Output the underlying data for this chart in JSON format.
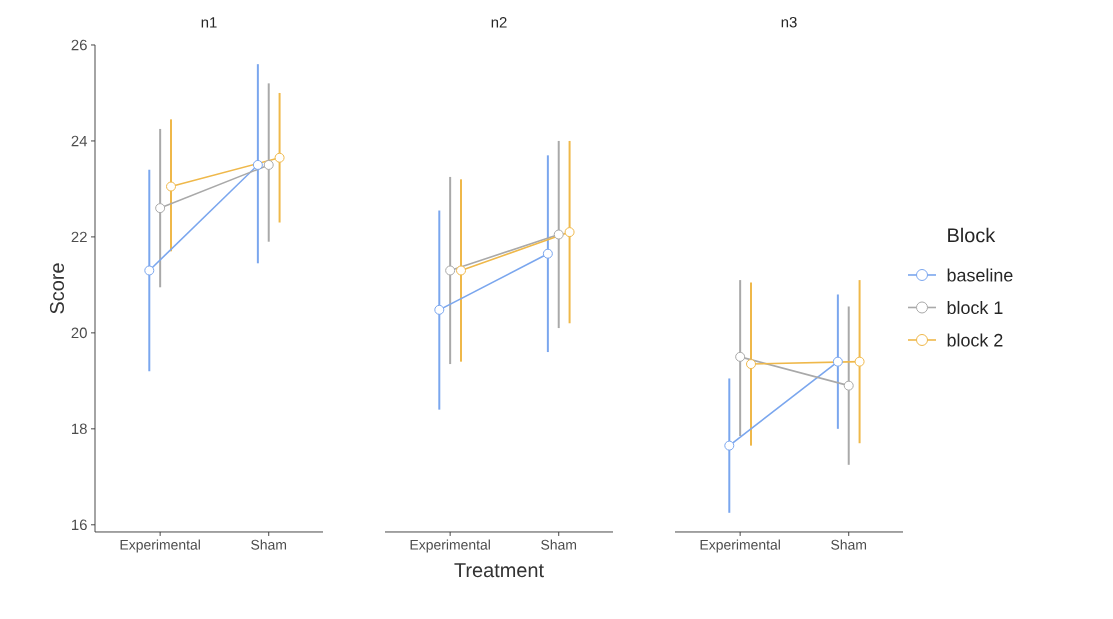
{
  "chart_data": [
    {
      "type": "line",
      "title": "n1",
      "ylabel": "Score",
      "categories": [
        "Experimental",
        "Sham"
      ],
      "ylim": [
        15.85,
        26
      ],
      "yticks": [
        16,
        18,
        20,
        22,
        24,
        26
      ],
      "marker": "circle",
      "line_style": "solid",
      "legend": false,
      "series": [
        {
          "color": "#7aa6ee",
          "values": [
            21.3,
            23.5
          ],
          "errors": [
            [
              19.2,
              23.4
            ],
            [
              21.45,
              25.6
            ]
          ]
        },
        {
          "color": "#a9a9a9",
          "values": [
            22.6,
            23.5
          ],
          "errors": [
            [
              20.95,
              24.25
            ],
            [
              21.9,
              25.2
            ]
          ]
        },
        {
          "color": "#efb84a",
          "values": [
            23.05,
            23.65
          ],
          "errors": [
            [
              21.7,
              24.45
            ],
            [
              22.3,
              25.0
            ]
          ]
        }
      ]
    },
    {
      "type": "line",
      "title": "n2",
      "xlabel": "Treatment",
      "categories": [
        "Experimental",
        "Sham"
      ],
      "ylim": [
        15.85,
        26
      ],
      "yticks": [
        16,
        18,
        20,
        22,
        24,
        26
      ],
      "tick_labels": "x",
      "marker": "circle",
      "line_style": "solid",
      "legend": false,
      "series": [
        {
          "color": "#7aa6ee",
          "values": [
            20.48,
            21.65
          ],
          "errors": [
            [
              18.4,
              22.55
            ],
            [
              19.6,
              23.7
            ]
          ]
        },
        {
          "color": "#a9a9a9",
          "values": [
            21.3,
            22.05
          ],
          "errors": [
            [
              19.35,
              23.25
            ],
            [
              20.1,
              24.0
            ]
          ]
        },
        {
          "color": "#efb84a",
          "values": [
            21.3,
            22.1
          ],
          "errors": [
            [
              19.4,
              23.2
            ],
            [
              20.2,
              24.0
            ]
          ]
        }
      ]
    },
    {
      "type": "line",
      "title": "n3",
      "legend_title": "Block",
      "categories": [
        "Experimental",
        "Sham"
      ],
      "ylim": [
        15.85,
        26
      ],
      "yticks": [
        16,
        18,
        20,
        22,
        24,
        26
      ],
      "tick_labels": "x",
      "marker": "circle",
      "line_style": "solid",
      "legend": "right",
      "series": [
        {
          "name": "baseline",
          "color": "#7aa6ee",
          "values": [
            17.65,
            19.4
          ],
          "errors": [
            [
              16.25,
              19.05
            ],
            [
              18.0,
              20.8
            ]
          ]
        },
        {
          "name": "block 1",
          "color": "#a9a9a9",
          "values": [
            19.5,
            18.9
          ],
          "errors": [
            [
              17.85,
              21.1
            ],
            [
              17.25,
              20.55
            ]
          ]
        },
        {
          "name": "block 2",
          "color": "#efb84a",
          "values": [
            19.35,
            19.4
          ],
          "errors": [
            [
              17.65,
              21.05
            ],
            [
              17.7,
              21.1
            ]
          ]
        }
      ]
    }
  ]
}
